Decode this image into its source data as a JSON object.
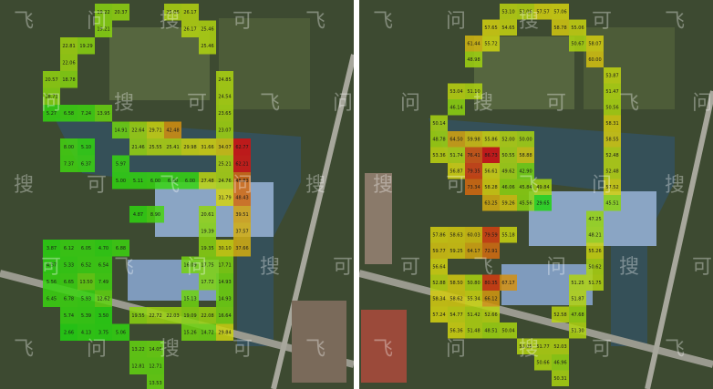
{
  "watermark": [
    "飞",
    "问",
    "搜",
    "可"
  ],
  "maps": [
    {
      "grid": [
        [
          null,
          null,
          null,
          "19.22",
          "20.37",
          null,
          null,
          "25.06",
          "26.17",
          null,
          null,
          null
        ],
        [
          null,
          null,
          null,
          "19.21",
          null,
          null,
          null,
          null,
          "26.17",
          "25.46",
          null,
          null
        ],
        [
          null,
          "22.81",
          "19.29",
          null,
          null,
          null,
          null,
          null,
          null,
          "25.46",
          null,
          null
        ],
        [
          null,
          "22.06",
          null,
          null,
          null,
          null,
          null,
          null,
          null,
          null,
          null,
          null
        ],
        [
          "20.57",
          "18.78",
          null,
          null,
          null,
          null,
          null,
          null,
          null,
          null,
          "24.85",
          null
        ],
        [
          "18.71",
          null,
          null,
          null,
          null,
          null,
          null,
          null,
          null,
          null,
          "24.54",
          null
        ],
        [
          "5.27",
          "6.58",
          "7.24",
          "13.95",
          null,
          null,
          null,
          null,
          null,
          null,
          "23.65",
          null
        ],
        [
          null,
          null,
          null,
          null,
          "14.91",
          "22.64",
          "29.71",
          "42.48",
          null,
          null,
          "23.07",
          null
        ],
        [
          null,
          "8.00",
          "5.10",
          null,
          null,
          "21.46",
          "25.55",
          "25.41",
          "29.98",
          "31.66",
          "34.07",
          "62.77"
        ],
        [
          null,
          "7.37",
          "6.37",
          null,
          "5.97",
          null,
          null,
          null,
          null,
          null,
          "25.21",
          "62.21"
        ],
        [
          null,
          null,
          null,
          null,
          "5.00",
          "5.11",
          "6.00",
          "6.00",
          "6.00",
          "27.48",
          "24.76",
          "48.83"
        ],
        [
          null,
          null,
          null,
          null,
          null,
          null,
          null,
          null,
          null,
          null,
          "31.79",
          "48.43"
        ],
        [
          null,
          null,
          null,
          null,
          null,
          "4.87",
          "8.90",
          null,
          null,
          "20.61",
          null,
          "39.51"
        ],
        [
          null,
          null,
          null,
          null,
          null,
          null,
          null,
          null,
          null,
          "19.39",
          null,
          "37.57"
        ],
        [
          "3.87",
          "6.12",
          "6.05",
          "4.70",
          "6.88",
          null,
          null,
          null,
          null,
          "19.35",
          "30.10",
          "37.66"
        ],
        [
          "4.57",
          "5.33",
          "6.52",
          "6.54",
          null,
          null,
          null,
          null,
          "16.09",
          "17.75",
          "17.71",
          null
        ],
        [
          "5.56",
          "6.65",
          "13.50",
          "7.49",
          null,
          null,
          null,
          null,
          null,
          "17.72",
          "14.93",
          null
        ],
        [
          "6.45",
          "6.78",
          "5.93",
          "12.62",
          null,
          null,
          null,
          null,
          "15.13",
          null,
          "14.93",
          null
        ],
        [
          null,
          "5.74",
          "5.39",
          "3.50",
          null,
          "19.55",
          "22.72",
          "22.03",
          "19.09",
          "22.08",
          "16.64",
          null
        ],
        [
          null,
          "2.66",
          "4.13",
          "3.75",
          "5.06",
          null,
          null,
          null,
          "15.26",
          "14.72",
          "29.84",
          null
        ],
        [
          null,
          null,
          null,
          null,
          null,
          "13.22",
          "14.05",
          null,
          null,
          null,
          null,
          null
        ],
        [
          null,
          null,
          null,
          null,
          null,
          "12.81",
          "12.71",
          null,
          null,
          null,
          null,
          null
        ],
        [
          null,
          null,
          null,
          null,
          null,
          null,
          "13.53",
          null,
          null,
          null,
          null,
          null
        ]
      ]
    },
    {
      "grid": [
        [
          null,
          null,
          null,
          null,
          "53.10",
          "52.06",
          "57.57",
          "57.06",
          null,
          null,
          null
        ],
        [
          null,
          null,
          null,
          "57.65",
          "54.65",
          null,
          null,
          "58.78",
          "55.06",
          null,
          null
        ],
        [
          null,
          null,
          "61.44",
          "55.72",
          null,
          null,
          null,
          null,
          "50.67",
          "58.07",
          null
        ],
        [
          null,
          null,
          "48.98",
          null,
          null,
          null,
          null,
          null,
          null,
          "60.00",
          null
        ],
        [
          null,
          null,
          null,
          null,
          null,
          null,
          null,
          null,
          null,
          null,
          "53.87"
        ],
        [
          null,
          "53.04",
          "51.10",
          null,
          null,
          null,
          null,
          null,
          null,
          null,
          "51.47"
        ],
        [
          null,
          "46.14",
          null,
          null,
          null,
          null,
          null,
          null,
          null,
          null,
          "50.56"
        ],
        [
          "50.14",
          null,
          null,
          null,
          null,
          null,
          null,
          null,
          null,
          null,
          "58.31"
        ],
        [
          "48.78",
          "64.50",
          "59.98",
          "55.86",
          "52.00",
          "50.00",
          null,
          null,
          null,
          null,
          "58.55"
        ],
        [
          "53.36",
          "51.74",
          "76.41",
          "86.73",
          "50.55",
          "58.88",
          null,
          null,
          null,
          null,
          "52.48"
        ],
        [
          null,
          "56.87",
          "79.35",
          "56.61",
          "49.62",
          "42.90",
          null,
          null,
          null,
          null,
          "52.48"
        ],
        [
          null,
          null,
          "73.34",
          "58.28",
          "46.06",
          "45.84",
          "49.84",
          null,
          null,
          null,
          "57.52"
        ],
        [
          null,
          null,
          null,
          "63.25",
          "59.26",
          "45.56",
          "29.65",
          null,
          null,
          null,
          "45.51"
        ],
        [
          null,
          null,
          null,
          null,
          null,
          null,
          null,
          null,
          null,
          "47.25",
          null
        ],
        [
          "57.86",
          "58.63",
          "60.03",
          "79.59",
          "55.18",
          null,
          null,
          null,
          null,
          "48.21",
          null
        ],
        [
          "59.77",
          "59.25",
          "64.17",
          "72.91",
          null,
          null,
          null,
          null,
          null,
          "55.26",
          null
        ],
        [
          "56.64",
          null,
          null,
          null,
          null,
          null,
          null,
          null,
          null,
          "50.62",
          null
        ],
        [
          "52.88",
          "58.50",
          "50.80",
          "80.35",
          "67.17",
          null,
          null,
          null,
          "51.25",
          "51.75",
          null
        ],
        [
          "58.34",
          "58.62",
          "55.34",
          "66.12",
          null,
          null,
          null,
          null,
          "51.87",
          null,
          null
        ],
        [
          "57.24",
          "54.77",
          "51.42",
          "52.66",
          null,
          null,
          null,
          "52.58",
          "47.68",
          null,
          null
        ],
        [
          null,
          "56.36",
          "51.48",
          "48.51",
          "50.04",
          null,
          null,
          null,
          "51.30",
          null,
          null
        ],
        [
          null,
          null,
          null,
          null,
          null,
          "52.05",
          "51.77",
          "52.03",
          null,
          null,
          null
        ],
        [
          null,
          null,
          null,
          null,
          null,
          null,
          "50.66",
          "46.96",
          null,
          null,
          null
        ],
        [
          null,
          null,
          null,
          null,
          null,
          null,
          null,
          "50.31",
          null,
          null,
          null
        ]
      ]
    }
  ]
}
